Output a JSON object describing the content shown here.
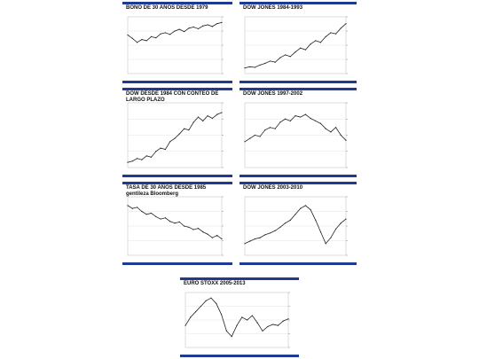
{
  "page": {
    "panels": [
      {
        "id": "p1",
        "title": "BONO DE 30 AÑOS DESDE 1979"
      },
      {
        "id": "p2",
        "title": "DOW JONES 1984-1993"
      },
      {
        "id": "p3",
        "title": "DOW DESDE 1984 CON CONTEO DE LARGO PLAZO"
      },
      {
        "id": "p4",
        "title": "DOW JONES 1997-2002"
      },
      {
        "id": "p5",
        "title": "TASA DE 30 AÑOS DESDE 1985\ngentileza Bloomberg"
      },
      {
        "id": "p6",
        "title": "DOW JONES  2003-2010"
      },
      {
        "id": "p7",
        "title": "EURO STOXX 2005-2013"
      }
    ]
  },
  "colors": {
    "border": "#1f3a93",
    "price": "#222222",
    "trend_blue": "#3355cc",
    "trend_red": "#cc3333",
    "grid": "#dddddd",
    "orange": "#e08a2a"
  },
  "chart_data": [
    {
      "type": "line",
      "title": "BONO DE 30 AÑOS DESDE 1979",
      "x": [
        0,
        1,
        2,
        3,
        4,
        5,
        6,
        7,
        8,
        9,
        10,
        11,
        12,
        13,
        14,
        15,
        16,
        17,
        18,
        19,
        20
      ],
      "series": [
        {
          "values": [
            68,
            62,
            55,
            60,
            58,
            65,
            63,
            70,
            72,
            69,
            75,
            78,
            74,
            80,
            82,
            79,
            84,
            86,
            83,
            88,
            90
          ]
        }
      ]
    },
    {
      "type": "line",
      "title": "DOW JONES 1984-1993",
      "x": [
        0,
        1,
        2,
        3,
        4,
        5,
        6,
        7,
        8,
        9,
        10,
        11,
        12,
        13,
        14,
        15,
        16,
        17,
        18,
        19,
        20
      ],
      "series": [
        {
          "values": [
            10,
            12,
            11,
            15,
            18,
            22,
            20,
            28,
            33,
            30,
            38,
            45,
            42,
            52,
            58,
            55,
            65,
            72,
            70,
            80,
            88
          ]
        }
      ]
    },
    {
      "type": "line",
      "title": "DOW DESDE 1984 CON CONTEO DE LARGO PLAZO",
      "x": [
        0,
        1,
        2,
        3,
        4,
        5,
        6,
        7,
        8,
        9,
        10,
        11,
        12,
        13,
        14,
        15,
        16,
        17,
        18,
        19,
        20
      ],
      "series": [
        {
          "values": [
            8,
            10,
            14,
            12,
            18,
            16,
            25,
            30,
            28,
            40,
            45,
            52,
            60,
            58,
            70,
            78,
            72,
            80,
            76,
            82,
            85
          ]
        }
      ]
    },
    {
      "type": "line",
      "title": "DOW JONES 1997-2002",
      "x": [
        0,
        1,
        2,
        3,
        4,
        5,
        6,
        7,
        8,
        9,
        10,
        11,
        12,
        13,
        14,
        15,
        16,
        17,
        18,
        19,
        20
      ],
      "series": [
        {
          "values": [
            40,
            45,
            50,
            48,
            58,
            62,
            60,
            70,
            75,
            72,
            80,
            78,
            82,
            76,
            72,
            68,
            60,
            55,
            62,
            50,
            42
          ]
        }
      ]
    },
    {
      "type": "line",
      "title": "TASA DE 30 AÑOS DESDE 1985",
      "x": [
        0,
        1,
        2,
        3,
        4,
        5,
        6,
        7,
        8,
        9,
        10,
        11,
        12,
        13,
        14,
        15,
        16,
        17,
        18,
        19,
        20
      ],
      "series": [
        {
          "values": [
            85,
            80,
            82,
            75,
            70,
            72,
            66,
            62,
            64,
            58,
            55,
            57,
            50,
            48,
            44,
            46,
            40,
            36,
            30,
            34,
            28
          ]
        }
      ]
    },
    {
      "type": "line",
      "title": "DOW JONES  2003-2010",
      "x": [
        0,
        1,
        2,
        3,
        4,
        5,
        6,
        7,
        8,
        9,
        10,
        11,
        12,
        13,
        14,
        15,
        16,
        17,
        18,
        19,
        20
      ],
      "series": [
        {
          "values": [
            20,
            24,
            28,
            30,
            35,
            38,
            42,
            48,
            55,
            60,
            70,
            80,
            85,
            78,
            60,
            40,
            20,
            30,
            45,
            55,
            62
          ]
        }
      ]
    },
    {
      "type": "line",
      "title": "EURO STOXX 2005-2013",
      "x": [
        0,
        1,
        2,
        3,
        4,
        5,
        6,
        7,
        8,
        9,
        10,
        11,
        12,
        13,
        14,
        15,
        16,
        17,
        18,
        19,
        20
      ],
      "series": [
        {
          "values": [
            40,
            55,
            65,
            75,
            85,
            90,
            80,
            60,
            30,
            20,
            40,
            55,
            50,
            58,
            45,
            30,
            38,
            42,
            40,
            48,
            52
          ]
        }
      ]
    }
  ]
}
